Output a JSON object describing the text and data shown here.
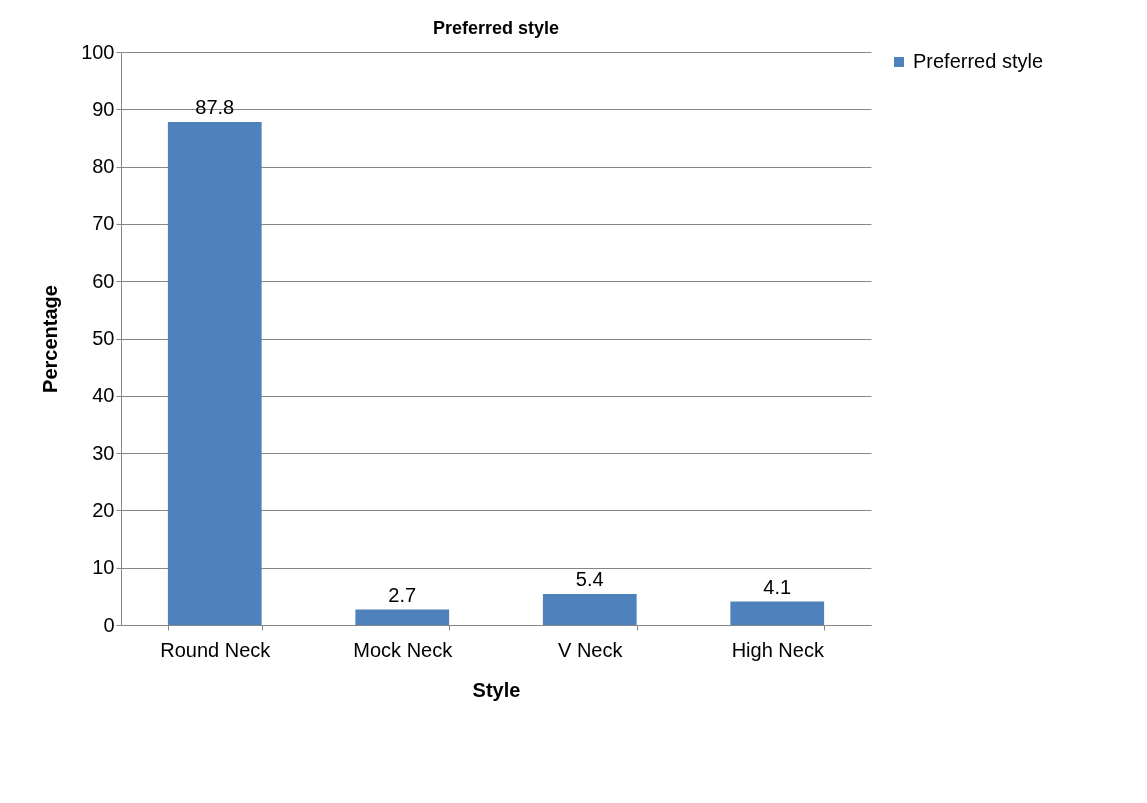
{
  "chart_data": {
    "type": "bar",
    "title": "Preferred style",
    "xlabel": "Style",
    "ylabel": "Percentage",
    "categories": [
      "Round Neck",
      "Mock Neck",
      "V Neck",
      "High Neck"
    ],
    "series": [
      {
        "name": "Preferred style",
        "color": "#4f81bd",
        "values": [
          87.8,
          2.7,
          5.4,
          4.1
        ]
      }
    ],
    "ylim": [
      0,
      100
    ],
    "yticks": [
      0,
      10,
      20,
      30,
      40,
      50,
      60,
      70,
      80,
      90,
      100
    ],
    "grid": "y",
    "legend": "right",
    "data_labels": true
  }
}
